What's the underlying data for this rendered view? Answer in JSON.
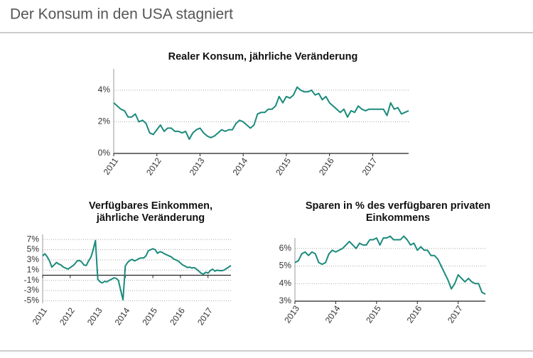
{
  "title": "Der Konsum in den USA stagniert",
  "chart_data": [
    {
      "type": "line",
      "title": [
        "Realer Konsum, jährliche Veränderung"
      ],
      "categories": [
        "2011",
        null,
        null,
        null,
        null,
        null,
        null,
        null,
        null,
        null,
        null,
        null,
        "2012",
        null,
        null,
        null,
        null,
        null,
        null,
        null,
        null,
        null,
        null,
        null,
        "2013",
        null,
        null,
        null,
        null,
        null,
        null,
        null,
        null,
        null,
        null,
        null,
        "2014",
        null,
        null,
        null,
        null,
        null,
        null,
        null,
        null,
        null,
        null,
        null,
        "2015",
        null,
        null,
        null,
        null,
        null,
        null,
        null,
        null,
        null,
        null,
        null,
        "2016",
        null,
        null,
        null,
        null,
        null,
        null,
        null,
        null,
        null,
        null,
        null,
        "2017",
        null,
        null,
        null,
        null,
        null,
        null,
        null,
        null,
        null,
        null
      ],
      "values": [
        3.2,
        3.0,
        2.8,
        2.7,
        2.3,
        2.3,
        2.5,
        2.0,
        2.1,
        1.9,
        1.3,
        1.2,
        1.5,
        1.8,
        1.4,
        1.6,
        1.6,
        1.4,
        1.4,
        1.3,
        1.4,
        0.9,
        1.3,
        1.5,
        1.6,
        1.3,
        1.1,
        1.0,
        1.1,
        1.3,
        1.5,
        1.4,
        1.5,
        1.5,
        1.9,
        2.1,
        2.0,
        1.8,
        1.6,
        1.8,
        2.5,
        2.6,
        2.6,
        2.8,
        2.8,
        3.0,
        3.6,
        3.2,
        3.6,
        3.5,
        3.7,
        4.2,
        4.0,
        3.9,
        3.9,
        4.0,
        3.7,
        3.8,
        3.4,
        3.6,
        3.2,
        3.0,
        2.8,
        2.6,
        2.8,
        2.3,
        2.7,
        2.6,
        3.0,
        2.8,
        2.7,
        2.8,
        2.8,
        2.8,
        2.8,
        2.8,
        2.4,
        3.2,
        2.8,
        2.9,
        2.5,
        2.6,
        2.7
      ],
      "color": "#1a8a7c",
      "ylim": [
        0,
        5.35
      ],
      "yticks": [
        {
          "value": 0,
          "label": "0%"
        },
        {
          "value": 2,
          "label": "2%"
        },
        {
          "value": 4,
          "label": "4%"
        }
      ],
      "grid": true
    },
    {
      "type": "line",
      "title": [
        "Verfügbares Einkommen,",
        "jährliche Veränderung"
      ],
      "categories": [
        "2011",
        null,
        null,
        null,
        null,
        null,
        null,
        null,
        null,
        null,
        null,
        null,
        "2012",
        null,
        null,
        null,
        null,
        null,
        null,
        null,
        null,
        null,
        null,
        null,
        "2013",
        null,
        null,
        null,
        null,
        null,
        null,
        null,
        null,
        null,
        null,
        null,
        "2014",
        null,
        null,
        null,
        null,
        null,
        null,
        null,
        null,
        null,
        null,
        null,
        "2015",
        null,
        null,
        null,
        null,
        null,
        null,
        null,
        null,
        null,
        null,
        null,
        "2016",
        null,
        null,
        null,
        null,
        null,
        null,
        null,
        null,
        null,
        null,
        null,
        "2017",
        null,
        null,
        null,
        null,
        null,
        null,
        null,
        null,
        null,
        null
      ],
      "values": [
        3.8,
        4.2,
        3.6,
        2.8,
        1.6,
        2.0,
        2.5,
        2.2,
        2.0,
        1.6,
        1.4,
        1.2,
        1.5,
        1.8,
        2.2,
        2.8,
        2.9,
        2.6,
        2.0,
        1.9,
        2.8,
        3.5,
        5.0,
        6.8,
        -0.8,
        -1.3,
        -1.5,
        -1.2,
        -1.3,
        -1.0,
        -0.8,
        -0.5,
        -0.6,
        -1.0,
        -3.0,
        -4.8,
        1.8,
        2.5,
        2.9,
        3.1,
        2.8,
        3.0,
        3.3,
        3.4,
        3.4,
        3.8,
        4.8,
        5.0,
        5.2,
        5.0,
        4.3,
        4.6,
        4.5,
        4.2,
        4.0,
        3.8,
        3.6,
        3.2,
        3.0,
        2.8,
        2.4,
        2.0,
        1.8,
        1.5,
        1.6,
        1.4,
        1.5,
        1.2,
        0.8,
        0.4,
        0.2,
        0.6,
        0.4,
        0.9,
        1.2,
        0.8,
        1.0,
        0.9,
        0.9,
        1.0,
        1.3,
        1.6,
        1.9
      ],
      "color": "#1a8a7c",
      "ylim": [
        -5.5,
        8
      ],
      "yticks": [
        {
          "value": -5,
          "label": "-5%"
        },
        {
          "value": -3,
          "label": "-3%"
        },
        {
          "value": -1,
          "label": "-1%"
        },
        {
          "value": 1,
          "label": "1%"
        },
        {
          "value": 3,
          "label": "3%"
        },
        {
          "value": 5,
          "label": "5%"
        },
        {
          "value": 7,
          "label": "7%"
        }
      ],
      "grid": true
    },
    {
      "type": "line",
      "title": [
        "Sparen in % des verfügbaren privaten",
        "Einkommens"
      ],
      "categories": [
        "2013",
        null,
        null,
        null,
        null,
        null,
        null,
        null,
        null,
        null,
        null,
        null,
        "2014",
        null,
        null,
        null,
        null,
        null,
        null,
        null,
        null,
        null,
        null,
        null,
        "2015",
        null,
        null,
        null,
        null,
        null,
        null,
        null,
        null,
        null,
        null,
        null,
        "2016",
        null,
        null,
        null,
        null,
        null,
        null,
        null,
        null,
        null,
        null,
        null,
        "2017",
        null,
        null,
        null,
        null,
        null,
        null,
        null,
        null
      ],
      "values": [
        5.2,
        5.3,
        5.7,
        5.8,
        5.6,
        5.8,
        5.7,
        5.2,
        5.1,
        5.2,
        5.7,
        5.9,
        5.8,
        5.9,
        6.0,
        6.2,
        6.4,
        6.2,
        6.0,
        6.3,
        6.2,
        6.2,
        6.5,
        6.5,
        6.6,
        6.2,
        6.6,
        6.6,
        6.7,
        6.5,
        6.5,
        6.5,
        6.7,
        6.5,
        6.2,
        6.3,
        5.9,
        6.1,
        5.9,
        5.9,
        5.6,
        5.6,
        5.4,
        5.0,
        4.6,
        4.2,
        3.7,
        4.0,
        4.5,
        4.3,
        4.1,
        4.3,
        4.1,
        4.0,
        4.0,
        3.5,
        3.4
      ],
      "color": "#1a8a7c",
      "ylim": [
        3,
        6.6
      ],
      "yticks": [
        {
          "value": 3,
          "label": "3%"
        },
        {
          "value": 4,
          "label": "4%"
        },
        {
          "value": 5,
          "label": "5%"
        },
        {
          "value": 6,
          "label": "6%"
        }
      ],
      "grid": true
    }
  ]
}
